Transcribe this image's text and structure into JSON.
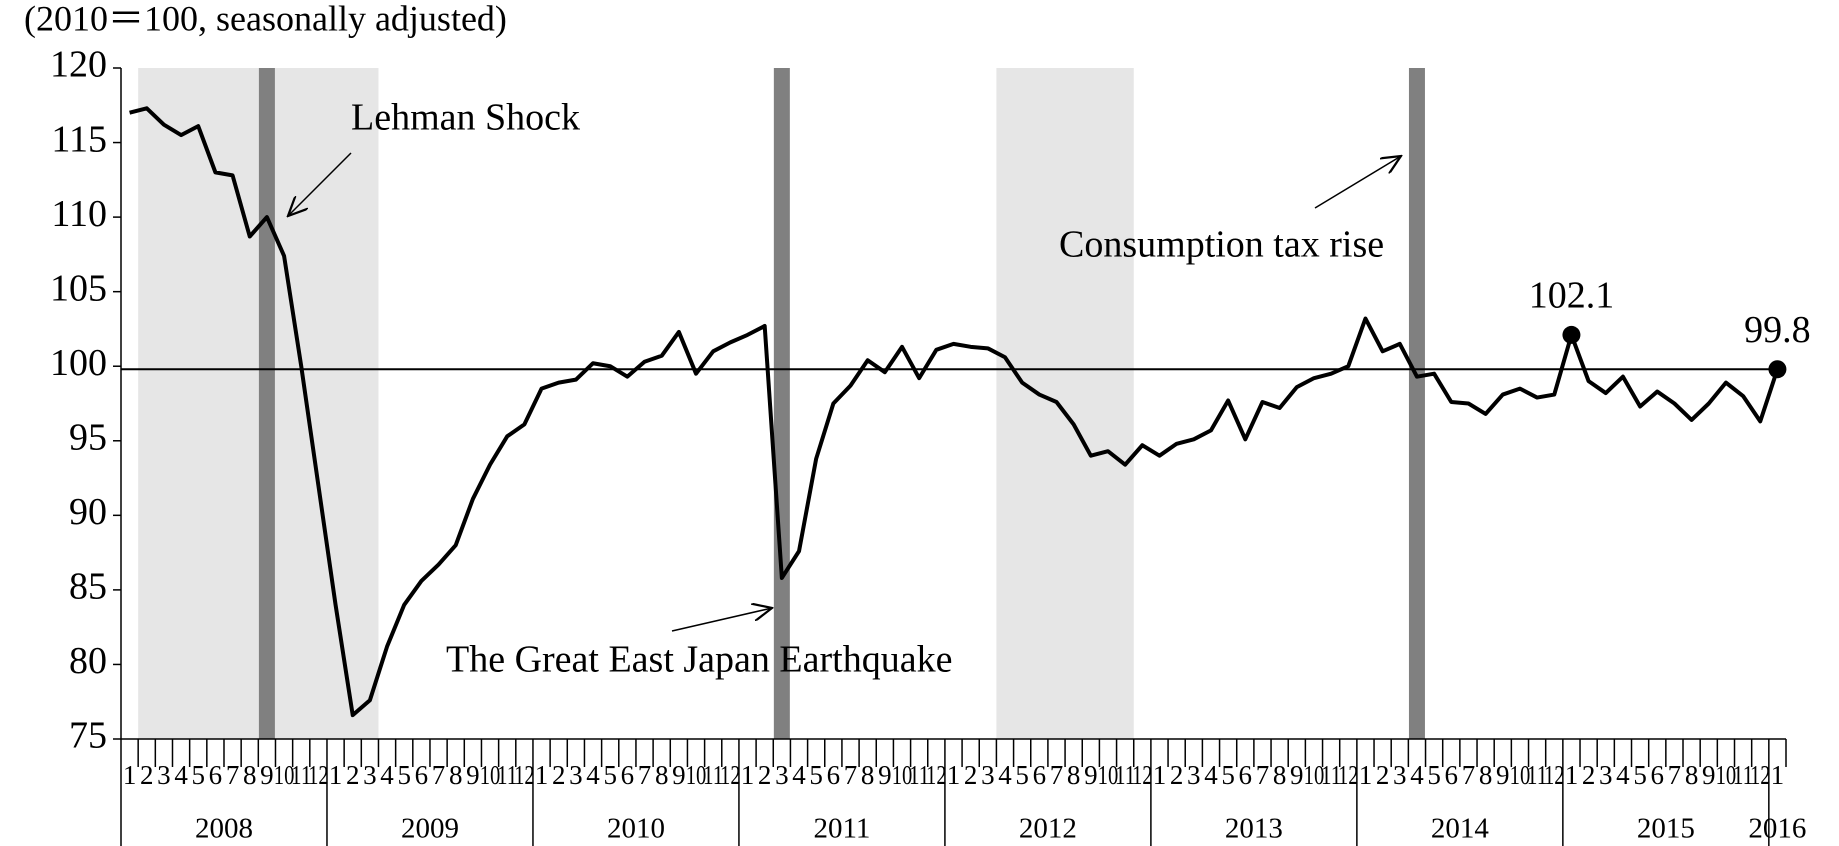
{
  "chart_data": {
    "type": "line",
    "subtitle": "(2010＝100, seasonally adjusted)",
    "categories": [
      "1",
      "2",
      "3",
      "4",
      "5",
      "6",
      "7",
      "8",
      "9",
      "10",
      "11",
      "12",
      "1",
      "2",
      "3",
      "4",
      "5",
      "6",
      "7",
      "8",
      "9",
      "10",
      "11",
      "12",
      "1",
      "2",
      "3",
      "4",
      "5",
      "6",
      "7",
      "8",
      "9",
      "10",
      "11",
      "12",
      "1",
      "2",
      "3",
      "4",
      "5",
      "6",
      "7",
      "8",
      "9",
      "10",
      "11",
      "12",
      "1",
      "2",
      "3",
      "4",
      "5",
      "6",
      "7",
      "8",
      "9",
      "10",
      "11",
      "12",
      "1",
      "2",
      "3",
      "4",
      "5",
      "6",
      "7",
      "8",
      "9",
      "10",
      "11",
      "12",
      "1",
      "2",
      "3",
      "4",
      "5",
      "6",
      "7",
      "8",
      "9",
      "10",
      "11",
      "12",
      "1",
      "2",
      "3",
      "4",
      "5",
      "6",
      "7",
      "8",
      "9",
      "10",
      "11",
      "12",
      "1"
    ],
    "years": [
      "2008",
      "2009",
      "2010",
      "2011",
      "2012",
      "2013",
      "2014",
      "2015",
      "2016"
    ],
    "series": [
      {
        "color": "#000000",
        "values": [
          117.0,
          117.3,
          116.2,
          115.5,
          116.1,
          113.0,
          112.8,
          108.7,
          110.0,
          107.4,
          100.0,
          92.0,
          84.0,
          76.6,
          77.6,
          81.2,
          84.0,
          85.6,
          86.7,
          88.0,
          91.1,
          93.4,
          95.3,
          96.1,
          98.5,
          98.9,
          99.1,
          100.2,
          100.0,
          99.3,
          100.3,
          100.7,
          102.3,
          99.5,
          101.0,
          101.6,
          102.1,
          102.7,
          85.8,
          87.6,
          93.8,
          97.5,
          98.7,
          100.4,
          99.6,
          101.3,
          99.2,
          101.1,
          101.5,
          101.3,
          101.2,
          100.6,
          98.9,
          98.1,
          97.6,
          96.1,
          94.0,
          94.3,
          93.4,
          94.7,
          94.0,
          94.8,
          95.1,
          95.7,
          97.7,
          95.1,
          97.6,
          97.2,
          98.6,
          99.2,
          99.5,
          100.0,
          103.2,
          101.0,
          101.5,
          99.3,
          99.5,
          97.6,
          97.5,
          96.8,
          98.1,
          98.5,
          97.9,
          98.1,
          102.1,
          99.0,
          98.2,
          99.3,
          97.3,
          98.3,
          97.5,
          96.4,
          97.5,
          98.9,
          98.0,
          96.3,
          99.8
        ]
      }
    ],
    "highlights": [
      {
        "index": 84,
        "label": "102.1"
      },
      {
        "index": 96,
        "label": "99.8"
      }
    ],
    "hline": 99.8,
    "shaded_ranges": [
      {
        "from": 1,
        "to": 14,
        "color": "#e6e6e6"
      },
      {
        "from": 51,
        "to": 58,
        "color": "#e6e6e6"
      }
    ],
    "event_bars": {
      "indices": [
        8,
        38,
        75
      ],
      "color": "#808080"
    },
    "annotations": [
      {
        "text": "Lehman Shock"
      },
      {
        "text": "The Great East Japan Earthquake"
      },
      {
        "text": "Consumption tax rise"
      }
    ],
    "ylim": [
      75,
      120
    ],
    "yticks": [
      75,
      80,
      85,
      90,
      95,
      100,
      105,
      110,
      115,
      120
    ]
  }
}
